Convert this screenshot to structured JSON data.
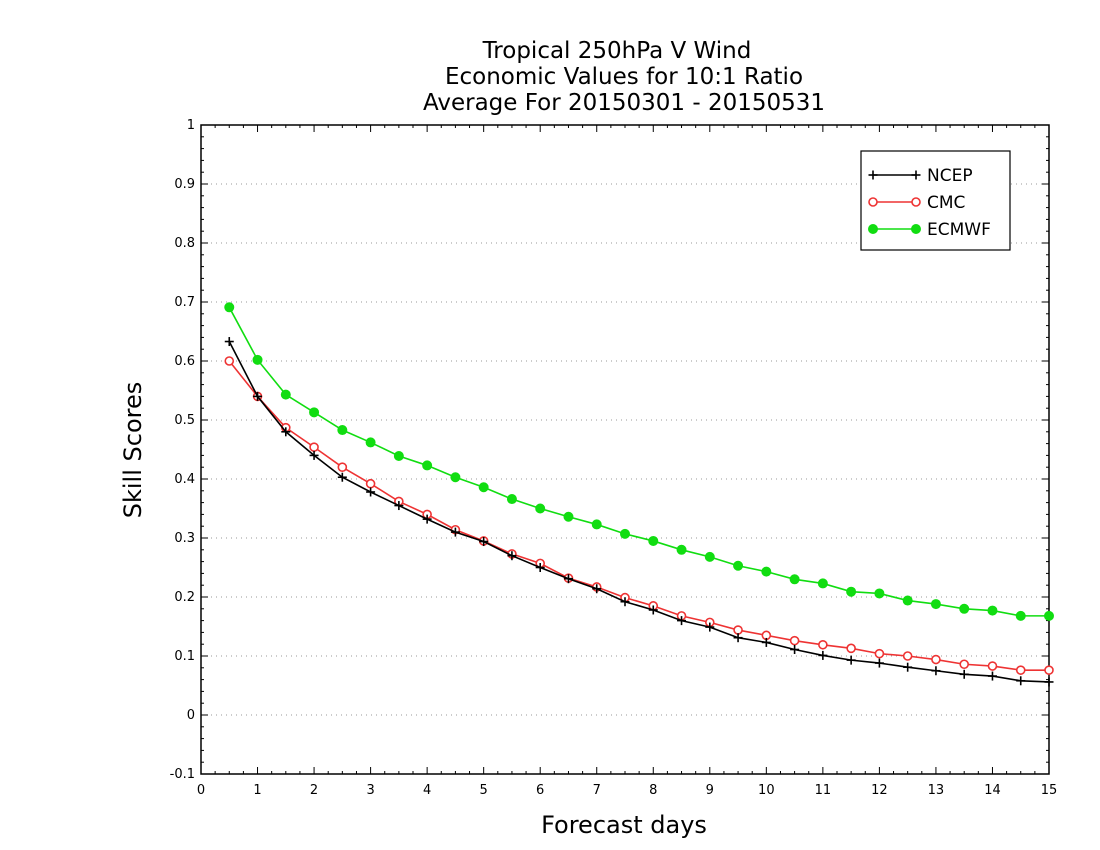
{
  "chart_data": {
    "type": "line",
    "title_lines": [
      "Tropical 250hPa V Wind",
      "Economic Values for 10:1 Ratio",
      "Average For 20150301 - 20150531"
    ],
    "xlabel": "Forecast days",
    "ylabel": "Skill Scores",
    "xlim": [
      0,
      15
    ],
    "ylim": [
      -0.1,
      1
    ],
    "xticks": [
      0,
      1,
      2,
      3,
      4,
      5,
      6,
      7,
      8,
      9,
      10,
      11,
      12,
      13,
      14,
      15
    ],
    "xtick_labels": [
      "0",
      "1",
      "2",
      "3",
      "4",
      "5",
      "6",
      "7",
      "8",
      "9",
      "10",
      "11",
      "12",
      "13",
      "14",
      "15"
    ],
    "yticks": [
      -0.1,
      0,
      0.1,
      0.2,
      0.3,
      0.4,
      0.5,
      0.6,
      0.7,
      0.8,
      0.9,
      1
    ],
    "ytick_labels": [
      "-0.1",
      "0",
      "0.1",
      "0.2",
      "0.3",
      "0.4",
      "0.5",
      "0.6",
      "0.7",
      "0.8",
      "0.9",
      "1"
    ],
    "grid": "horizontal dotted",
    "legend_position": "top-right",
    "x": [
      0.5,
      1,
      1.5,
      2,
      2.5,
      3,
      3.5,
      4,
      4.5,
      5,
      5.5,
      6,
      6.5,
      7,
      7.5,
      8,
      8.5,
      9,
      9.5,
      10,
      10.5,
      11,
      11.5,
      12,
      12.5,
      13,
      13.5,
      14,
      14.5,
      15
    ],
    "series": [
      {
        "name": "NCEP",
        "color": "#000000",
        "marker": "plus",
        "values": [
          0.633,
          0.54,
          0.48,
          0.44,
          0.403,
          0.378,
          0.355,
          0.332,
          0.31,
          0.294,
          0.27,
          0.25,
          0.231,
          0.214,
          0.192,
          0.178,
          0.16,
          0.149,
          0.131,
          0.123,
          0.111,
          0.101,
          0.093,
          0.088,
          0.081,
          0.075,
          0.069,
          0.066,
          0.058,
          0.056
        ]
      },
      {
        "name": "CMC",
        "color": "#ee3333",
        "marker": "open-circle",
        "values": [
          0.6,
          0.54,
          0.487,
          0.454,
          0.42,
          0.392,
          0.362,
          0.34,
          0.314,
          0.295,
          0.273,
          0.257,
          0.232,
          0.217,
          0.199,
          0.185,
          0.168,
          0.157,
          0.144,
          0.135,
          0.126,
          0.119,
          0.113,
          0.104,
          0.1,
          0.094,
          0.086,
          0.083,
          0.076,
          0.076
        ]
      },
      {
        "name": "ECMWF",
        "color": "#11dd11",
        "marker": "filled-circle",
        "values": [
          0.691,
          0.602,
          0.543,
          0.513,
          0.483,
          0.462,
          0.439,
          0.423,
          0.403,
          0.386,
          0.366,
          0.35,
          0.336,
          0.323,
          0.307,
          0.295,
          0.28,
          0.268,
          0.253,
          0.243,
          0.23,
          0.223,
          0.209,
          0.206,
          0.194,
          0.188,
          0.18,
          0.177,
          0.168,
          0.168
        ]
      }
    ]
  }
}
